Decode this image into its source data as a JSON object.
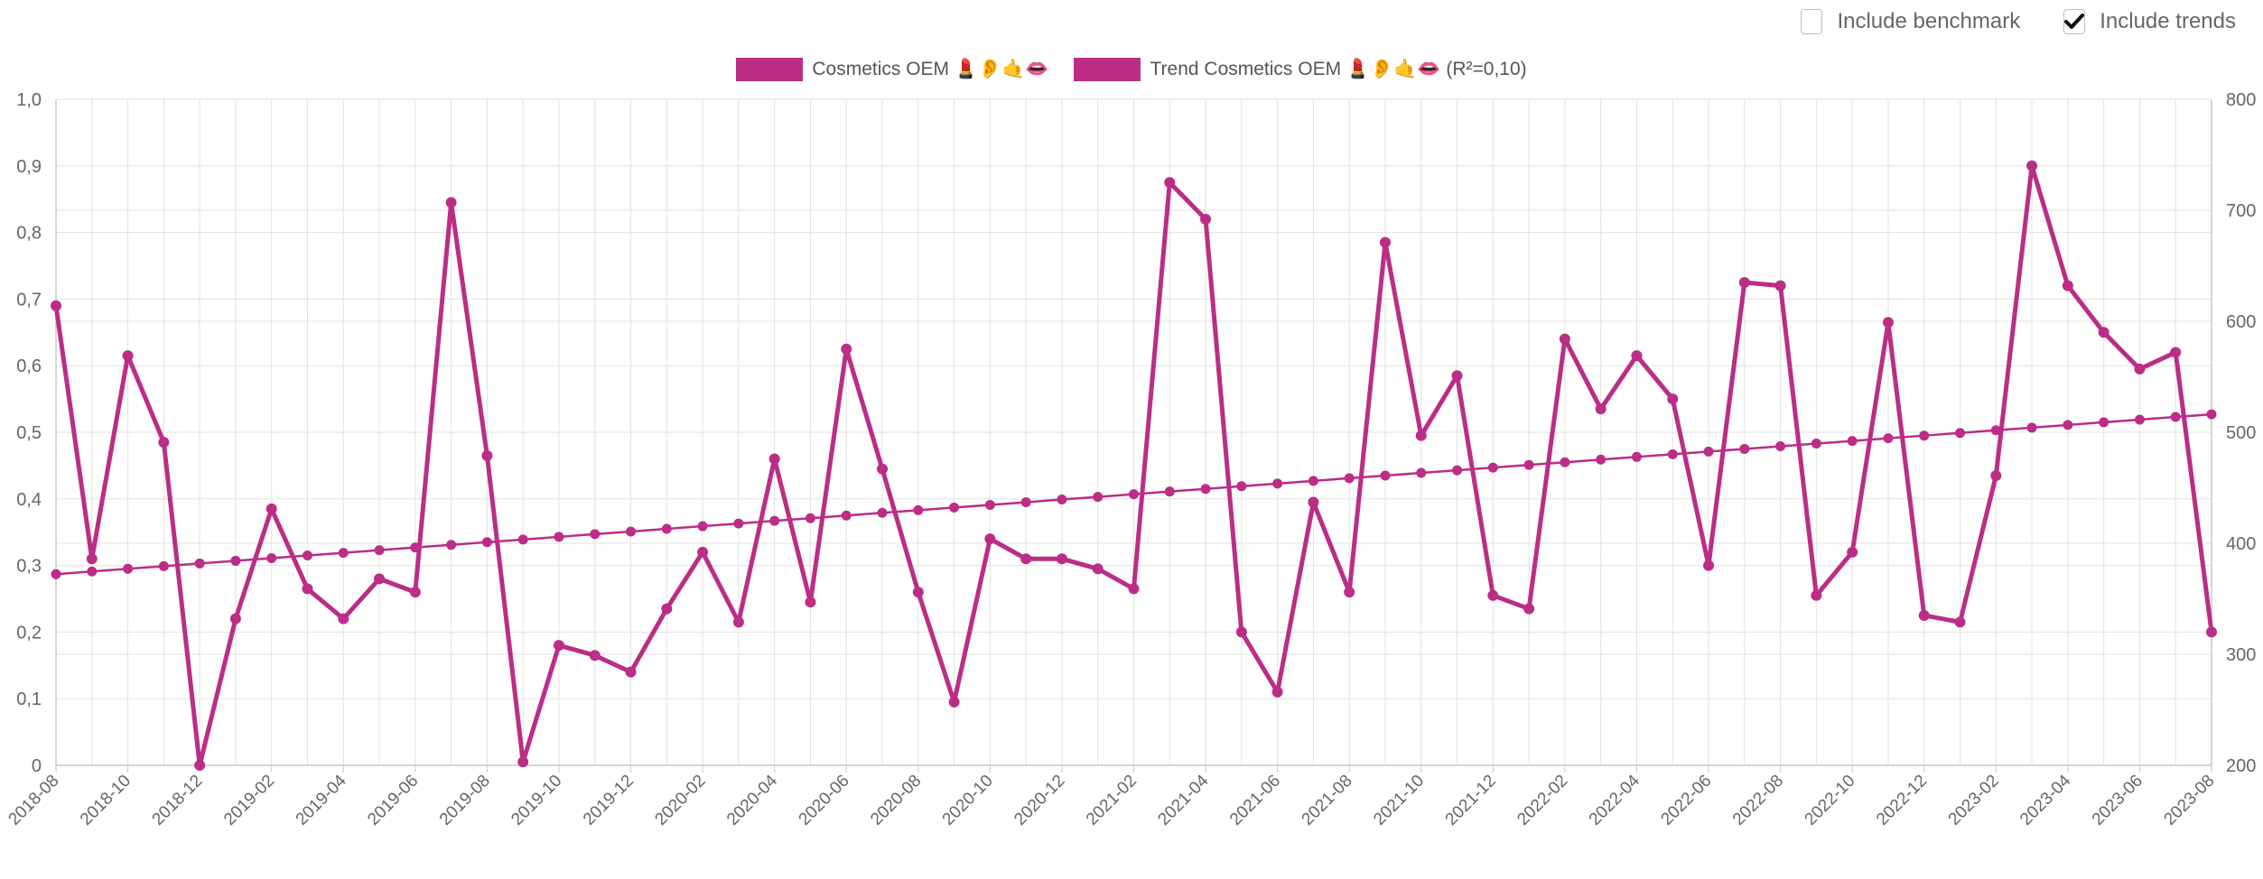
{
  "controls": {
    "benchmark": {
      "label": "Include benchmark",
      "checked": false
    },
    "trends": {
      "label": "Include trends",
      "checked": true
    }
  },
  "colors": {
    "series": "#bb2d86",
    "grid": "#e2e2e2",
    "axis": "#c8c8c8"
  },
  "chart_data": {
    "type": "line",
    "legend": [
      {
        "label": "Cosmetics OEM 💄👂🤙👄"
      },
      {
        "label": "Trend Cosmetics OEM 💄👂🤙👄 (R²=0,10)"
      }
    ],
    "categories": [
      "2018-08",
      "2018-09",
      "2018-10",
      "2018-11",
      "2018-12",
      "2019-01",
      "2019-02",
      "2019-03",
      "2019-04",
      "2019-05",
      "2019-06",
      "2019-07",
      "2019-08",
      "2019-09",
      "2019-10",
      "2019-11",
      "2019-12",
      "2020-01",
      "2020-02",
      "2020-03",
      "2020-04",
      "2020-05",
      "2020-06",
      "2020-07",
      "2020-08",
      "2020-09",
      "2020-10",
      "2020-11",
      "2020-12",
      "2021-01",
      "2021-02",
      "2021-03",
      "2021-04",
      "2021-05",
      "2021-06",
      "2021-07",
      "2021-08",
      "2021-09",
      "2021-10",
      "2021-11",
      "2021-12",
      "2022-01",
      "2022-02",
      "2022-03",
      "2022-04",
      "2022-05",
      "2022-06",
      "2022-07",
      "2022-08",
      "2022-09",
      "2022-10",
      "2022-11",
      "2022-12",
      "2023-01",
      "2023-02",
      "2023-03",
      "2023-04",
      "2023-05",
      "2023-06",
      "2023-07",
      "2023-08"
    ],
    "x_tick_labels": [
      "2018-08",
      "2018-10",
      "2018-12",
      "2019-02",
      "2019-04",
      "2019-06",
      "2019-08",
      "2019-10",
      "2019-12",
      "2020-02",
      "2020-04",
      "2020-06",
      "2020-08",
      "2020-10",
      "2020-12",
      "2021-02",
      "2021-04",
      "2021-06",
      "2021-08",
      "2021-10",
      "2021-12",
      "2022-02",
      "2022-04",
      "2022-06",
      "2022-08",
      "2022-10",
      "2022-12",
      "2023-02",
      "2023-04",
      "2023-06",
      "2023-08"
    ],
    "series": [
      {
        "name": "Cosmetics OEM",
        "values": [
          0.69,
          0.31,
          0.615,
          0.485,
          0.0,
          0.22,
          0.385,
          0.265,
          0.22,
          0.28,
          0.26,
          0.845,
          0.465,
          0.005,
          0.18,
          0.165,
          0.14,
          0.235,
          0.32,
          0.215,
          0.46,
          0.245,
          0.625,
          0.445,
          0.26,
          0.095,
          0.34,
          0.31,
          0.31,
          0.295,
          0.265,
          0.875,
          0.82,
          0.2,
          0.11,
          0.395,
          0.26,
          0.785,
          0.495,
          0.585,
          0.255,
          0.235,
          0.64,
          0.535,
          0.615,
          0.55,
          0.3,
          0.725,
          0.72,
          0.255,
          0.32,
          0.665,
          0.225,
          0.215,
          0.435,
          0.9,
          0.72,
          0.65,
          0.595,
          0.62,
          0.2
        ]
      },
      {
        "name": "Trend Cosmetics OEM",
        "values": [
          0.287,
          0.291,
          0.295,
          0.299,
          0.303,
          0.307,
          0.311,
          0.315,
          0.319,
          0.323,
          0.327,
          0.331,
          0.335,
          0.339,
          0.343,
          0.347,
          0.351,
          0.355,
          0.359,
          0.363,
          0.367,
          0.371,
          0.375,
          0.379,
          0.383,
          0.387,
          0.391,
          0.395,
          0.399,
          0.403,
          0.407,
          0.411,
          0.415,
          0.419,
          0.423,
          0.427,
          0.431,
          0.435,
          0.439,
          0.443,
          0.447,
          0.451,
          0.455,
          0.459,
          0.463,
          0.467,
          0.471,
          0.475,
          0.479,
          0.483,
          0.487,
          0.491,
          0.495,
          0.499,
          0.503,
          0.507,
          0.511,
          0.515,
          0.519,
          0.523,
          0.527
        ]
      }
    ],
    "y_left": {
      "min": 0,
      "max": 1,
      "ticks": [
        "0",
        "0,1",
        "0,2",
        "0,3",
        "0,4",
        "0,5",
        "0,6",
        "0,7",
        "0,8",
        "0,9",
        "1,0"
      ]
    },
    "y_right": {
      "min": 200,
      "max": 800,
      "ticks": [
        "200",
        "300",
        "400",
        "500",
        "600",
        "700",
        "800"
      ]
    }
  }
}
